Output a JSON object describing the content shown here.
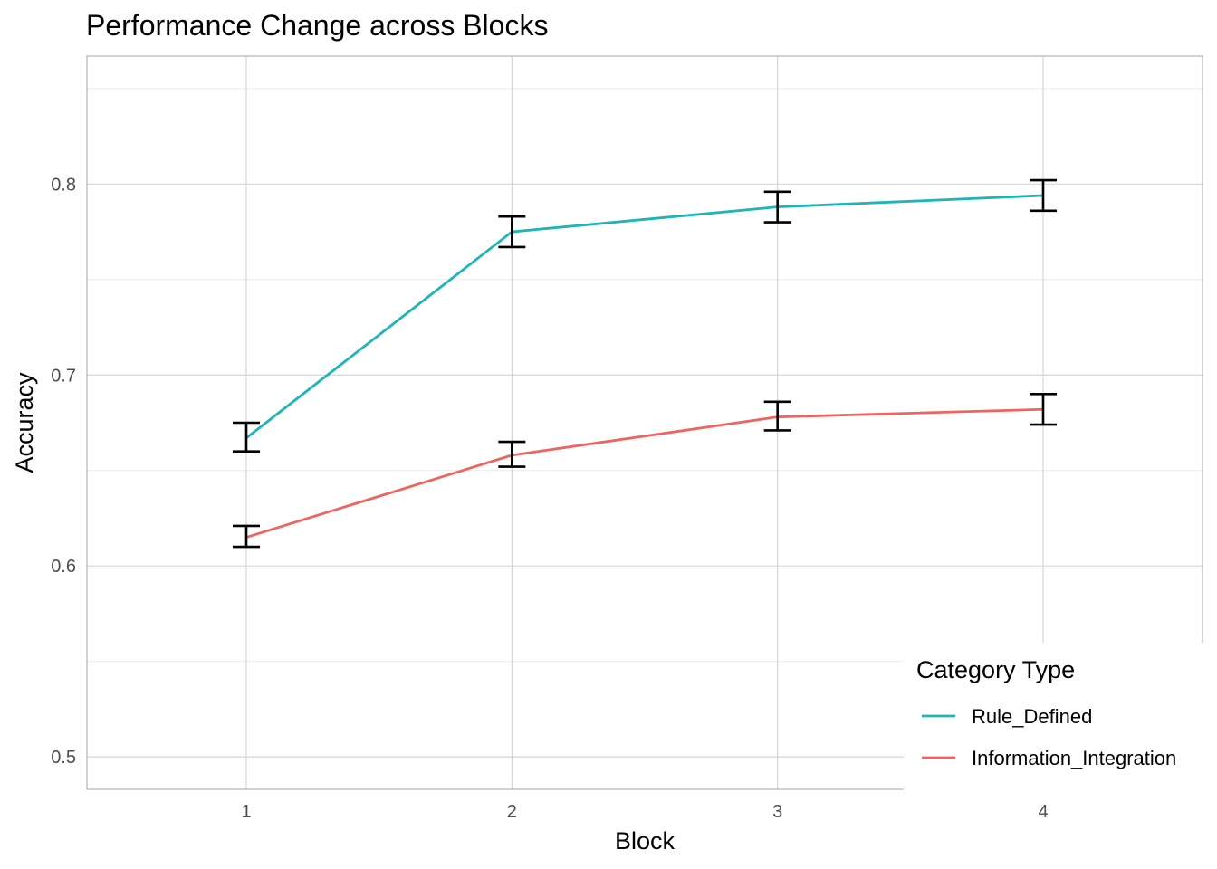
{
  "chart_data": {
    "type": "line",
    "title": "Performance Change across Blocks",
    "xlabel": "Block",
    "ylabel": "Accuracy",
    "x": [
      1,
      2,
      3,
      4
    ],
    "xlim": [
      0.4,
      4.6
    ],
    "ylim": [
      0.483,
      0.867
    ],
    "x_ticks": [
      "1",
      "2",
      "3",
      "4"
    ],
    "y_ticks": [
      "0.5",
      "0.6",
      "0.7",
      "0.8"
    ],
    "grid": true,
    "legend": {
      "title": "Category Type",
      "position": "bottom-right"
    },
    "series": [
      {
        "name": "Rule_Defined",
        "color": "#1fb5b8",
        "values": [
          0.667,
          0.775,
          0.788,
          0.794
        ],
        "error_low": [
          0.66,
          0.767,
          0.78,
          0.786
        ],
        "error_high": [
          0.675,
          0.783,
          0.796,
          0.802
        ]
      },
      {
        "name": "Information_Integration",
        "color": "#ef6461",
        "values": [
          0.615,
          0.658,
          0.678,
          0.682
        ],
        "error_low": [
          0.61,
          0.652,
          0.671,
          0.674
        ],
        "error_high": [
          0.621,
          0.665,
          0.686,
          0.69
        ]
      }
    ]
  }
}
